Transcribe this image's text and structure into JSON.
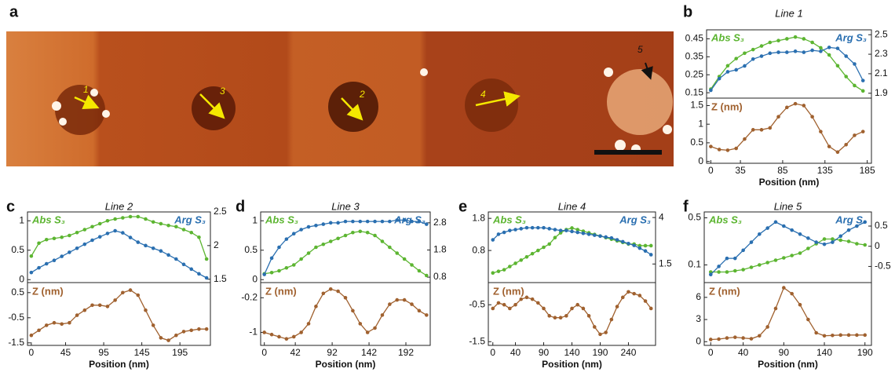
{
  "image_panel": {
    "label": "a",
    "markers": [
      "1",
      "2",
      "3",
      "4",
      "5"
    ]
  },
  "chart_data": [
    {
      "type": "line",
      "panel": "b",
      "title": "Line 1",
      "xlabel": "Position (nm)",
      "x": [
        0,
        10,
        20,
        30,
        40,
        50,
        60,
        70,
        80,
        90,
        100,
        110,
        120,
        130,
        140,
        150,
        160,
        170,
        180
      ],
      "xlim": [
        -5,
        190
      ],
      "xticks": [
        0,
        35,
        85,
        135,
        185
      ],
      "ylim": [
        0.12,
        0.5
      ],
      "yticks": [
        0.15,
        0.25,
        0.35,
        0.45
      ],
      "y2lim": [
        1.85,
        2.55
      ],
      "y2ticks": [
        1.9,
        2.1,
        2.3,
        2.5
      ],
      "series": [
        {
          "name": "Abs S₃",
          "color": "#5cb531",
          "values": [
            0.17,
            0.24,
            0.3,
            0.34,
            0.37,
            0.39,
            0.41,
            0.43,
            0.44,
            0.45,
            0.46,
            0.45,
            0.43,
            0.4,
            0.36,
            0.3,
            0.24,
            0.19,
            0.16
          ]
        },
        {
          "name": "Arg S₃",
          "color": "#2a6fb0",
          "axis": "y2",
          "values": [
            1.93,
            2.05,
            2.12,
            2.14,
            2.18,
            2.25,
            2.28,
            2.31,
            2.32,
            2.32,
            2.33,
            2.32,
            2.34,
            2.33,
            2.37,
            2.36,
            2.28,
            2.2,
            2.03
          ]
        }
      ],
      "lower": {
        "ylim": [
          -0.05,
          1.7
        ],
        "yticks": [
          0,
          0.5,
          1,
          1.5
        ],
        "series": [
          {
            "name": "Z (nm)",
            "color": "#a0612f",
            "values": [
              0.4,
              0.32,
              0.3,
              0.35,
              0.6,
              0.85,
              0.85,
              0.9,
              1.2,
              1.45,
              1.55,
              1.5,
              1.2,
              0.8,
              0.4,
              0.25,
              0.45,
              0.7,
              0.8
            ]
          }
        ]
      }
    },
    {
      "type": "line",
      "panel": "c",
      "title": "Line 2",
      "xlabel": "Position (nm)",
      "x": [
        0,
        10,
        20,
        30,
        40,
        50,
        60,
        70,
        80,
        90,
        100,
        110,
        120,
        130,
        140,
        150,
        160,
        170,
        180,
        190,
        200,
        210,
        220,
        230
      ],
      "xlim": [
        -5,
        235
      ],
      "xticks": [
        0,
        45,
        95,
        145,
        195
      ],
      "ylim": [
        -0.05,
        1.15
      ],
      "yticks": [
        0,
        0.5,
        1
      ],
      "y2lim": [
        1.45,
        2.5
      ],
      "y2ticks": [
        1.5,
        2,
        2.5
      ],
      "series": [
        {
          "name": "Abs S₃",
          "color": "#5cb531",
          "values": [
            0.4,
            0.62,
            0.68,
            0.7,
            0.72,
            0.75,
            0.8,
            0.85,
            0.9,
            0.95,
            1.0,
            1.03,
            1.05,
            1.07,
            1.07,
            1.03,
            0.98,
            0.95,
            0.92,
            0.9,
            0.85,
            0.8,
            0.72,
            0.35
          ]
        },
        {
          "name": "Arg S₃",
          "color": "#2a6fb0",
          "axis": "y2",
          "values": [
            1.6,
            1.67,
            1.73,
            1.78,
            1.84,
            1.9,
            1.96,
            2.02,
            2.08,
            2.13,
            2.18,
            2.22,
            2.19,
            2.12,
            2.05,
            2.0,
            1.96,
            1.92,
            1.86,
            1.8,
            1.72,
            1.65,
            1.58,
            1.52
          ]
        }
      ],
      "lower": {
        "ylim": [
          -1.6,
          0.9
        ],
        "yticks": [
          -1.5,
          -0.5,
          0.5
        ],
        "series": [
          {
            "name": "Z (nm)",
            "color": "#a0612f",
            "values": [
              -1.2,
              -1.0,
              -0.8,
              -0.7,
              -0.75,
              -0.7,
              -0.4,
              -0.2,
              0.0,
              0.0,
              -0.05,
              0.2,
              0.5,
              0.6,
              0.4,
              -0.2,
              -0.8,
              -1.3,
              -1.4,
              -1.2,
              -1.05,
              -1.0,
              -0.95,
              -0.95
            ]
          }
        ]
      }
    },
    {
      "type": "line",
      "panel": "d",
      "title": "Line 3",
      "xlabel": "Position (nm)",
      "x": [
        0,
        10,
        20,
        30,
        40,
        50,
        60,
        70,
        80,
        90,
        100,
        110,
        120,
        130,
        140,
        150,
        160,
        170,
        180,
        190,
        200,
        210,
        220
      ],
      "xlim": [
        -5,
        225
      ],
      "xticks": [
        0,
        42,
        92,
        142,
        192
      ],
      "ylim": [
        -0.05,
        1.15
      ],
      "yticks": [
        0,
        0.5,
        1
      ],
      "y2lim": [
        0.6,
        3.2
      ],
      "y2ticks": [
        0.8,
        1.8,
        2.8
      ],
      "series": [
        {
          "name": "Abs S₃",
          "color": "#5cb531",
          "values": [
            0.1,
            0.12,
            0.15,
            0.2,
            0.25,
            0.35,
            0.45,
            0.55,
            0.6,
            0.65,
            0.7,
            0.75,
            0.8,
            0.82,
            0.8,
            0.75,
            0.65,
            0.55,
            0.45,
            0.35,
            0.25,
            0.15,
            0.07
          ]
        },
        {
          "name": "Arg S₃",
          "color": "#2a6fb0",
          "axis": "y2",
          "values": [
            0.9,
            1.5,
            1.9,
            2.2,
            2.4,
            2.55,
            2.65,
            2.7,
            2.75,
            2.8,
            2.8,
            2.85,
            2.85,
            2.85,
            2.85,
            2.85,
            2.85,
            2.85,
            2.9,
            2.9,
            2.85,
            2.85,
            2.75
          ]
        }
      ],
      "lower": {
        "ylim": [
          -1.3,
          0.15
        ],
        "yticks": [
          -1,
          -0.2
        ],
        "series": [
          {
            "name": "Z (nm)",
            "color": "#a0612f",
            "values": [
              -1.0,
              -1.05,
              -1.1,
              -1.15,
              -1.1,
              -1.0,
              -0.8,
              -0.4,
              -0.1,
              0.0,
              -0.05,
              -0.2,
              -0.5,
              -0.8,
              -1.0,
              -0.9,
              -0.6,
              -0.35,
              -0.25,
              -0.25,
              -0.35,
              -0.5,
              -0.6
            ]
          }
        ]
      }
    },
    {
      "type": "line",
      "panel": "e",
      "title": "Line 4",
      "xlabel": "Position (nm)",
      "x": [
        0,
        10,
        20,
        30,
        40,
        50,
        60,
        70,
        80,
        90,
        100,
        110,
        120,
        130,
        140,
        150,
        160,
        170,
        180,
        190,
        200,
        210,
        220,
        230,
        240,
        250,
        260,
        270,
        280
      ],
      "xlim": [
        -8,
        288
      ],
      "xticks": [
        0,
        40,
        90,
        140,
        190,
        240
      ],
      "ylim": [
        -0.2,
        2.0
      ],
      "yticks": [
        0.8,
        1.8
      ],
      "y2lim": [
        0.5,
        4.3
      ],
      "y2ticks": [
        1.5,
        4
      ],
      "series": [
        {
          "name": "Abs S₃",
          "color": "#5cb531",
          "values": [
            0.1,
            0.15,
            0.2,
            0.3,
            0.4,
            0.5,
            0.6,
            0.7,
            0.8,
            0.9,
            1.0,
            1.2,
            1.35,
            1.45,
            1.5,
            1.45,
            1.4,
            1.35,
            1.3,
            1.25,
            1.2,
            1.15,
            1.1,
            1.05,
            1.0,
            1.0,
            0.95,
            0.95,
            0.95
          ]
        },
        {
          "name": "Arg S₃",
          "color": "#2a6fb0",
          "axis": "y2",
          "values": [
            2.8,
            3.1,
            3.2,
            3.3,
            3.35,
            3.4,
            3.45,
            3.45,
            3.45,
            3.45,
            3.4,
            3.35,
            3.3,
            3.3,
            3.25,
            3.2,
            3.15,
            3.1,
            3.05,
            3.0,
            2.95,
            2.9,
            2.8,
            2.7,
            2.6,
            2.5,
            2.35,
            2.2,
            2.0
          ]
        }
      ],
      "lower": {
        "ylim": [
          -1.6,
          0.1
        ],
        "yticks": [
          -1.5,
          -0.5
        ],
        "series": [
          {
            "name": "Z (nm)",
            "color": "#a0612f",
            "values": [
              -0.6,
              -0.45,
              -0.5,
              -0.6,
              -0.5,
              -0.35,
              -0.3,
              -0.35,
              -0.45,
              -0.6,
              -0.8,
              -0.85,
              -0.85,
              -0.8,
              -0.6,
              -0.5,
              -0.6,
              -0.8,
              -1.1,
              -1.3,
              -1.25,
              -0.9,
              -0.55,
              -0.3,
              -0.15,
              -0.2,
              -0.25,
              -0.4,
              -0.6
            ]
          }
        ]
      }
    },
    {
      "type": "line",
      "panel": "f",
      "title": "Line 5",
      "xlabel": "Position (nm)",
      "x": [
        0,
        10,
        20,
        30,
        40,
        50,
        60,
        70,
        80,
        90,
        100,
        110,
        120,
        130,
        140,
        150,
        160,
        170,
        180,
        190
      ],
      "xlim": [
        -8,
        198
      ],
      "xticks": [
        0,
        40,
        90,
        140,
        190
      ],
      "ylim": [
        -0.05,
        0.55
      ],
      "yticks": [
        0.1,
        0.5
      ],
      "y2lim": [
        -0.9,
        0.85
      ],
      "y2ticks": [
        -0.5,
        0,
        0.5
      ],
      "series": [
        {
          "name": "Abs S₃",
          "color": "#5cb531",
          "values": [
            0.04,
            0.04,
            0.04,
            0.05,
            0.06,
            0.08,
            0.1,
            0.12,
            0.14,
            0.16,
            0.18,
            0.2,
            0.24,
            0.28,
            0.32,
            0.32,
            0.31,
            0.3,
            0.28,
            0.27
          ]
        },
        {
          "name": "Arg S₃",
          "color": "#2a6fb0",
          "axis": "y2",
          "values": [
            -0.7,
            -0.5,
            -0.3,
            -0.3,
            -0.1,
            0.1,
            0.3,
            0.45,
            0.6,
            0.5,
            0.4,
            0.3,
            0.2,
            0.1,
            0.05,
            0.1,
            0.25,
            0.4,
            0.5,
            0.6
          ]
        }
      ],
      "lower": {
        "ylim": [
          -0.5,
          8
        ],
        "yticks": [
          0,
          3,
          6
        ],
        "series": [
          {
            "name": "Z (nm)",
            "color": "#a0612f",
            "values": [
              0.3,
              0.35,
              0.5,
              0.6,
              0.5,
              0.4,
              0.8,
              2,
              4.5,
              7.3,
              6.5,
              5,
              3,
              1.2,
              0.8,
              0.85,
              0.9,
              0.9,
              0.9,
              0.9
            ]
          }
        ]
      }
    }
  ]
}
